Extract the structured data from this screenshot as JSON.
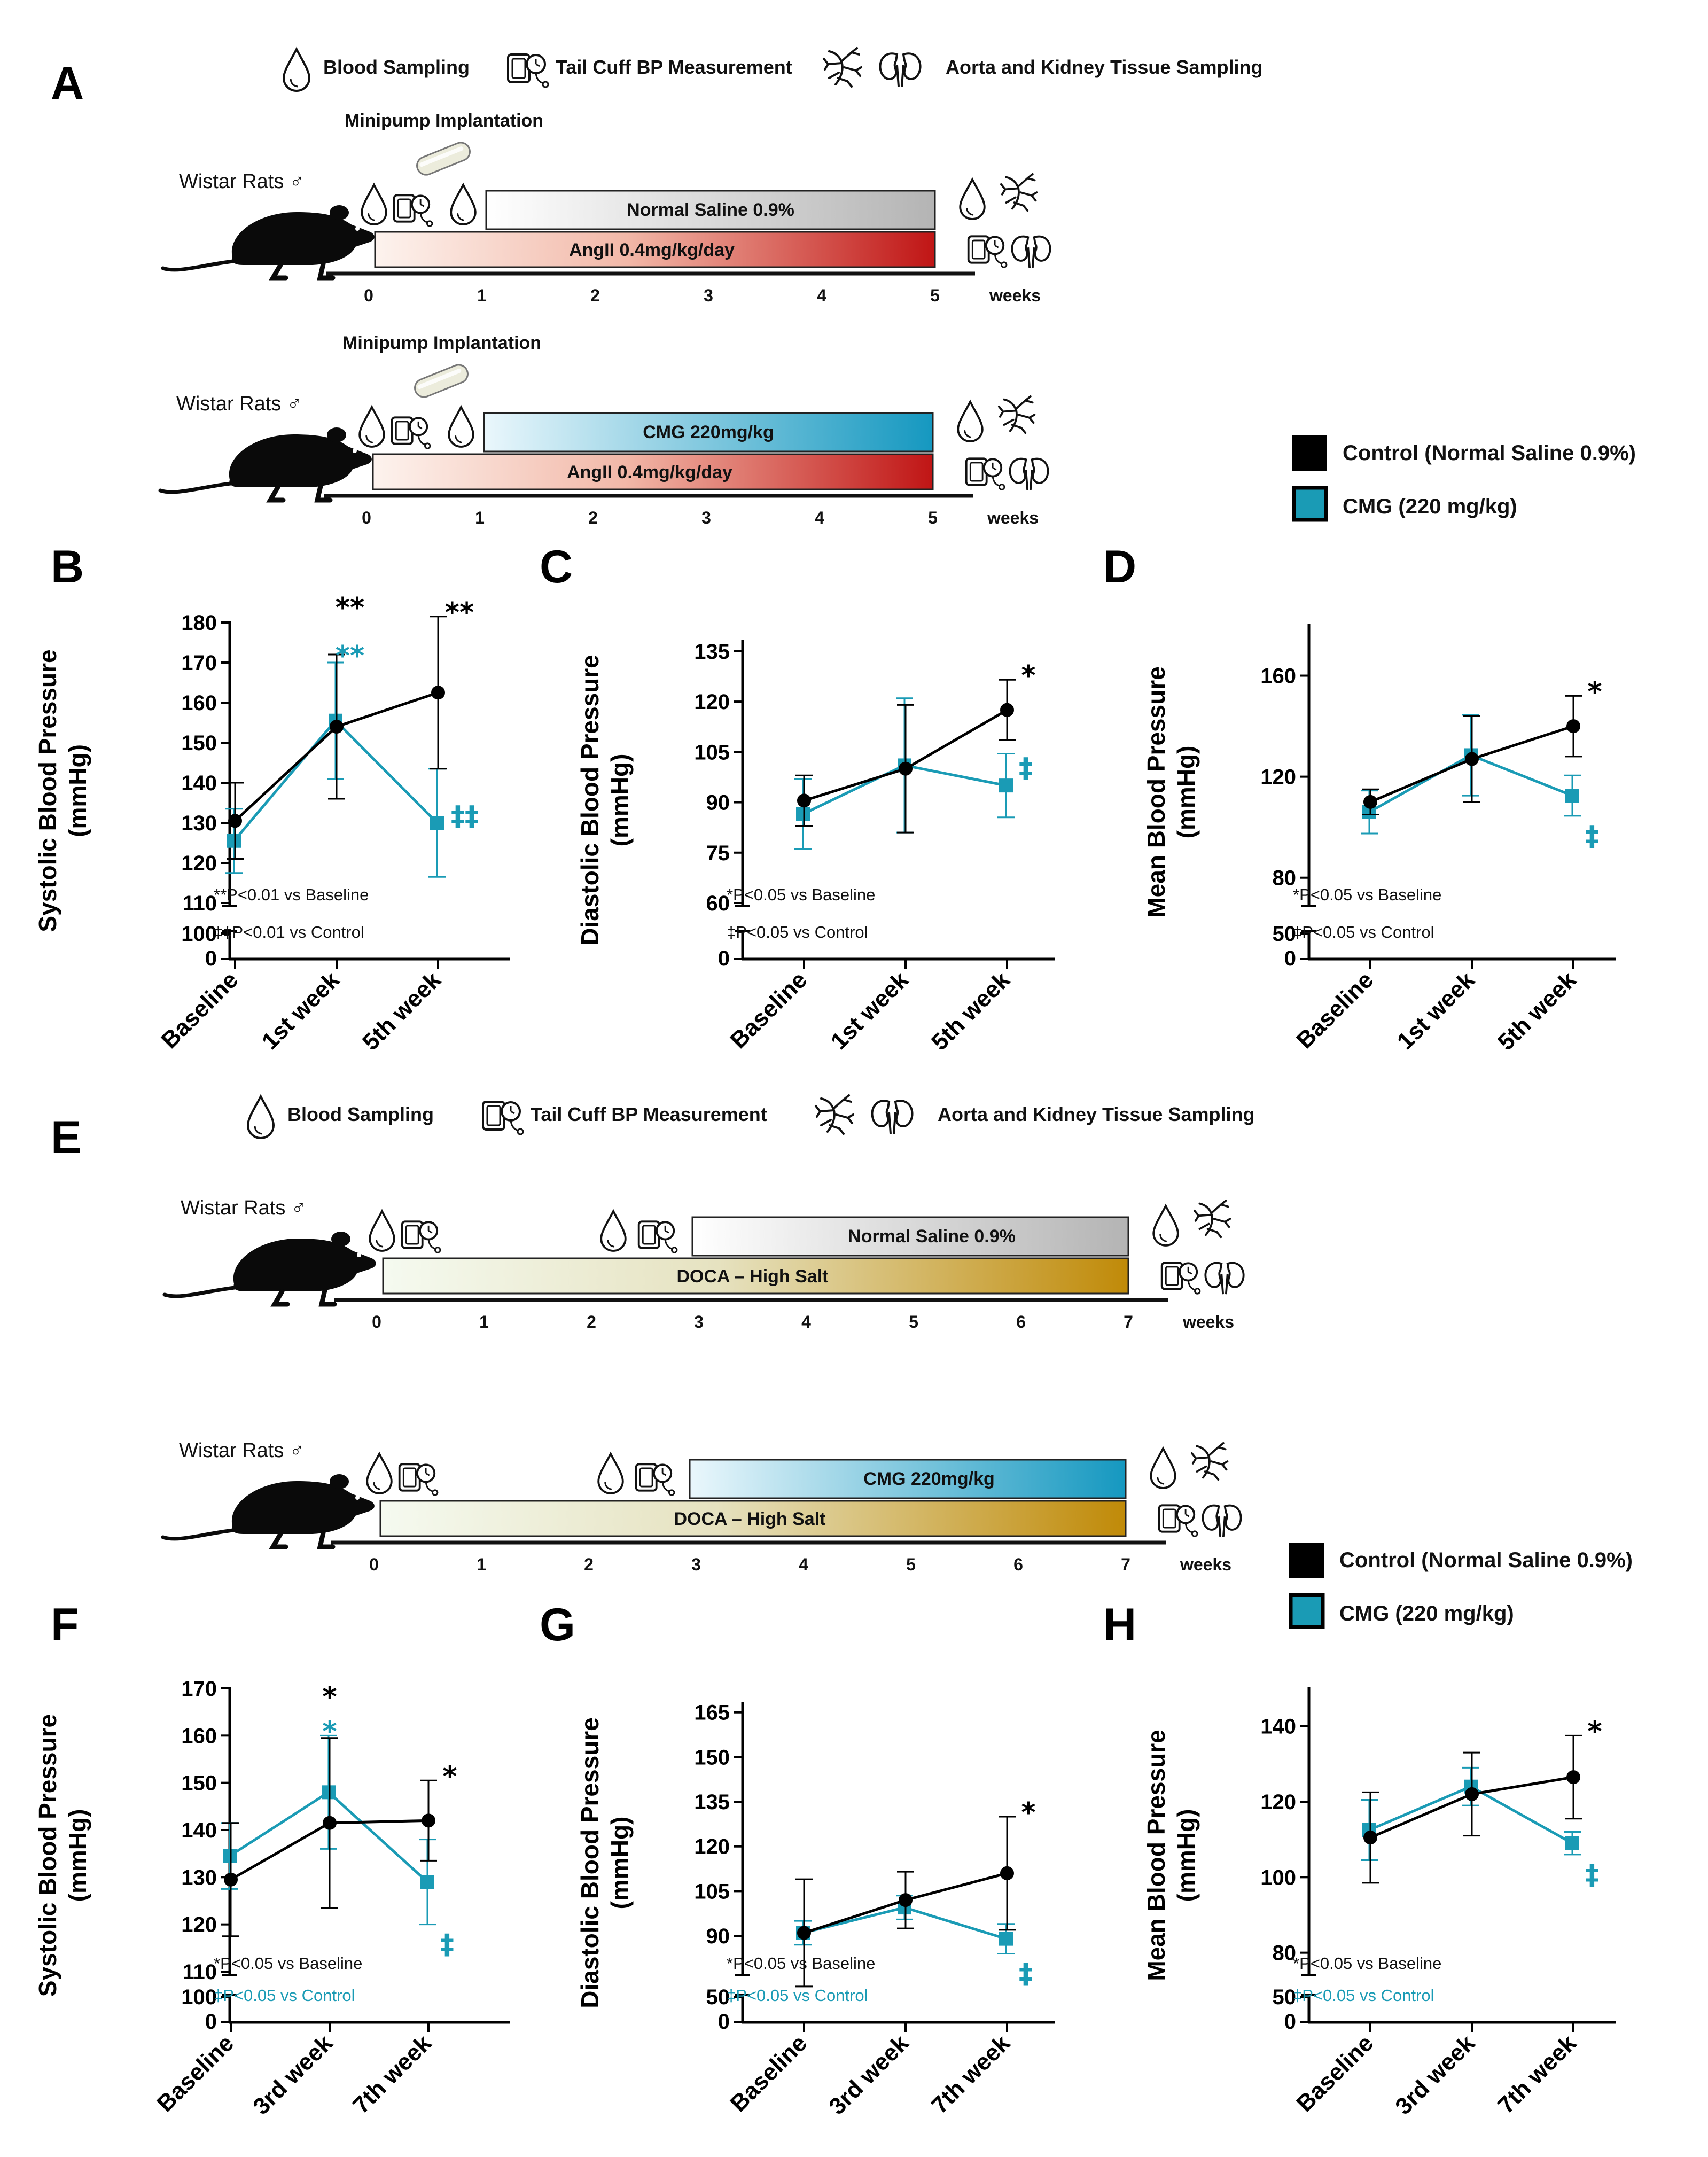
{
  "colors": {
    "control": "#000000",
    "cmg": "#1a9bb5",
    "angii": "#c01818",
    "doca": "#c4900c",
    "saline": "#b0b0b0"
  },
  "legend": {
    "icon_blood": "Blood Sampling",
    "icon_bp": "Tail Cuff BP Measurement",
    "icon_tissue": "Aorta and Kidney Tissue Sampling"
  },
  "series_legend": {
    "control": "Control (Normal  Saline 0.9%)",
    "cmg": "CMG (220 mg/kg)"
  },
  "protocols": {
    "A": {
      "label": "A",
      "rat_label": "Wistar Rats ♂",
      "implant_label": "Minipump Implantation",
      "weeks_label": "weeks",
      "ticks": [
        "0",
        "1",
        "2",
        "3",
        "4",
        "5"
      ],
      "rows": [
        {
          "top_bar": "Normal Saline 0.9%",
          "bottom_bar": "AngII 0.4mg/kg/day"
        },
        {
          "top_bar": "CMG 220mg/kg",
          "bottom_bar": "AngII 0.4mg/kg/day"
        }
      ]
    },
    "E": {
      "label": "E",
      "rat_label": "Wistar Rats ♂",
      "weeks_label": "weeks",
      "ticks": [
        "0",
        "1",
        "2",
        "3",
        "4",
        "5",
        "6",
        "7"
      ],
      "rows": [
        {
          "top_bar": "Normal Saline 0.9%",
          "bottom_bar": "DOCA – High Salt"
        },
        {
          "top_bar": "CMG 220mg/kg",
          "bottom_bar": "DOCA – High Salt"
        }
      ]
    }
  },
  "chart_data": [
    {
      "id": "B",
      "type": "line",
      "ylabel": [
        "Systolic Blood Pressure",
        "(mmHg)"
      ],
      "categories": [
        "Baseline",
        "1st week",
        "5th week"
      ],
      "ylim": [
        110,
        180
      ],
      "yticks": [
        110,
        120,
        130,
        140,
        150,
        160,
        170,
        180
      ],
      "ybreak": [
        "100",
        "0"
      ],
      "series": [
        {
          "name": "Control (Normal  Saline 0.9%)",
          "values": [
            130.5,
            154,
            162.5
          ],
          "err": [
            9.5,
            18,
            19
          ]
        },
        {
          "name": "CMG (220 mg/kg)",
          "values": [
            125.5,
            155.5,
            130
          ],
          "err": [
            8,
            14.5,
            13.5
          ]
        }
      ],
      "annotations": [
        {
          "series": 0,
          "index": 1,
          "text": "**"
        },
        {
          "series": 1,
          "index": 1,
          "text": "**"
        },
        {
          "series": 0,
          "index": 2,
          "text": "**"
        },
        {
          "series": 1,
          "index": 2,
          "text": "‡‡"
        }
      ],
      "notes": [
        "**P<0.01 vs Baseline",
        "‡‡P<0.01 vs Control"
      ]
    },
    {
      "id": "C",
      "type": "line",
      "ylabel": [
        "Diastolic Blood Pressure",
        "(mmHg)"
      ],
      "categories": [
        "Baseline",
        "1st week",
        "5th week"
      ],
      "ylim": [
        60,
        138
      ],
      "yticks": [
        60,
        75,
        90,
        105,
        120,
        135
      ],
      "ybreak": [
        "0"
      ],
      "series": [
        {
          "name": "Control (Normal  Saline 0.9%)",
          "values": [
            90.5,
            100,
            117.5
          ],
          "err": [
            7.5,
            19,
            9
          ]
        },
        {
          "name": "CMG (220 mg/kg)",
          "values": [
            86.5,
            101,
            95
          ],
          "err": [
            10.5,
            20,
            9.5
          ]
        }
      ],
      "annotations": [
        {
          "series": 0,
          "index": 2,
          "text": "*"
        },
        {
          "series": 1,
          "index": 2,
          "text": "‡"
        }
      ],
      "notes": [
        "*P<0.05 vs Baseline",
        "‡P<0.05 vs Control"
      ]
    },
    {
      "id": "D",
      "type": "line",
      "ylabel": [
        "Mean Blood Pressure",
        "(mmHg)"
      ],
      "categories": [
        "Baseline",
        "1st week",
        "5th week"
      ],
      "ylim": [
        70,
        180
      ],
      "yticks": [
        80,
        120,
        160
      ],
      "ybreak": [
        "50",
        "0"
      ],
      "series": [
        {
          "name": "Control (Normal  Saline 0.9%)",
          "values": [
            110,
            127,
            140
          ],
          "err": [
            5,
            17,
            12
          ]
        },
        {
          "name": "CMG (220 mg/kg)",
          "values": [
            106,
            128.5,
            112.5
          ],
          "err": [
            8.5,
            16,
            8
          ]
        }
      ],
      "annotations": [
        {
          "series": 0,
          "index": 2,
          "text": "*"
        },
        {
          "series": 1,
          "index": 2,
          "text": "‡"
        }
      ],
      "notes": [
        "*P<0.05 vs Baseline",
        "‡P<0.05 vs Control"
      ]
    },
    {
      "id": "F",
      "type": "line",
      "ylabel": [
        "Systolic Blood Pressure",
        "(mmHg)"
      ],
      "categories": [
        "Baseline",
        "3rd week",
        "7th week"
      ],
      "ylim": [
        110,
        170
      ],
      "yticks": [
        110,
        120,
        130,
        140,
        150,
        160,
        170
      ],
      "ybreak": [
        "100",
        "0"
      ],
      "series": [
        {
          "name": "Control (Normal  Saline 0.9%)",
          "values": [
            129.5,
            141.5,
            142
          ],
          "err": [
            12,
            18,
            8.5
          ]
        },
        {
          "name": "CMG (220 mg/kg)",
          "values": [
            134.5,
            148,
            129
          ],
          "err": [
            7,
            12,
            9
          ]
        }
      ],
      "annotations": [
        {
          "series": 0,
          "index": 1,
          "text": "*"
        },
        {
          "series": 1,
          "index": 1,
          "text": "*"
        },
        {
          "series": 0,
          "index": 2,
          "text": "*"
        },
        {
          "series": 1,
          "index": 2,
          "text": "‡"
        }
      ],
      "notes": [
        "*P<0.05 vs Baseline",
        "‡P<0.05 vs Control"
      ]
    },
    {
      "id": "G",
      "type": "line",
      "ylabel": [
        "Diastolic Blood Pressure",
        "(mmHg)"
      ],
      "categories": [
        "Baseline",
        "3rd week",
        "7th week"
      ],
      "ylim": [
        78,
        168
      ],
      "yticks": [
        90,
        105,
        120,
        135,
        150,
        165
      ],
      "ybreak": [
        "50",
        "0"
      ],
      "series": [
        {
          "name": "Control (Normal  Saline 0.9%)",
          "values": [
            91,
            102,
            111
          ],
          "err": [
            18,
            9.5,
            19
          ]
        },
        {
          "name": "CMG (220 mg/kg)",
          "values": [
            91,
            99.5,
            89
          ],
          "err": [
            4,
            4,
            5
          ]
        }
      ],
      "annotations": [
        {
          "series": 0,
          "index": 2,
          "text": "*"
        },
        {
          "series": 1,
          "index": 2,
          "text": "‡"
        }
      ],
      "notes": [
        "*P<0.05 vs Baseline",
        "‡P<0.05 vs Control"
      ]
    },
    {
      "id": "H",
      "type": "line",
      "ylabel": [
        "Mean Blood Pressure",
        "(mmHg)"
      ],
      "categories": [
        "Baseline",
        "3rd week",
        "7th week"
      ],
      "ylim": [
        75,
        150
      ],
      "yticks": [
        80,
        100,
        120,
        140
      ],
      "ybreak": [
        "50",
        "0"
      ],
      "series": [
        {
          "name": "Control (Normal  Saline 0.9%)",
          "values": [
            110.5,
            122,
            126.5
          ],
          "err": [
            12,
            11,
            11
          ]
        },
        {
          "name": "CMG (220 mg/kg)",
          "values": [
            112.5,
            124,
            109
          ],
          "err": [
            8,
            5,
            3
          ]
        }
      ],
      "annotations": [
        {
          "series": 0,
          "index": 2,
          "text": "*"
        },
        {
          "series": 1,
          "index": 2,
          "text": "‡"
        }
      ],
      "notes": [
        "*P<0.05 vs Baseline",
        "‡P<0.05 vs Control"
      ]
    }
  ]
}
